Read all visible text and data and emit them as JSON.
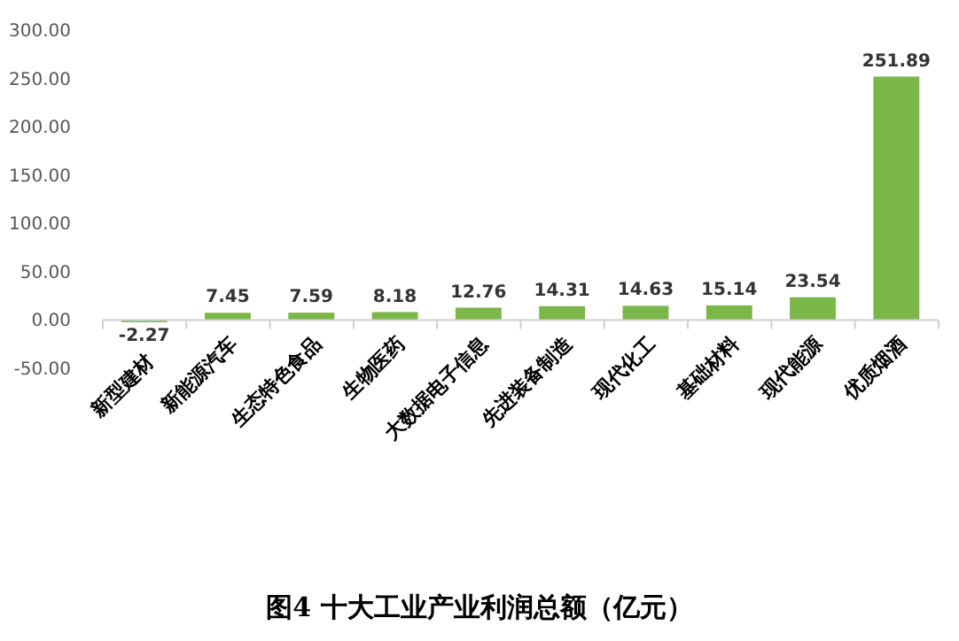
{
  "chart_data": {
    "type": "bar",
    "title": "图4  十大工业产业利润总额（亿元）",
    "categories": [
      "新型建材",
      "新能源汽车",
      "生态特色食品",
      "生物医药",
      "大数据电子信息",
      "先进装备制造",
      "现代化工",
      "基础材料",
      "现代能源",
      "优质烟酒"
    ],
    "values": [
      -2.27,
      7.45,
      7.59,
      8.18,
      12.76,
      14.31,
      14.63,
      15.14,
      23.54,
      251.89
    ],
    "color": "#7ab648",
    "ylim": [
      -50,
      300
    ],
    "yticks": [
      {
        "value": -50,
        "label": "-50.00"
      },
      {
        "value": 0,
        "label": "0.00"
      },
      {
        "value": 50,
        "label": "50.00"
      },
      {
        "value": 100,
        "label": "100.00"
      },
      {
        "value": 150,
        "label": "150.00"
      },
      {
        "value": 200,
        "label": "200.00"
      },
      {
        "value": 250,
        "label": "250.00"
      },
      {
        "value": 300,
        "label": "300.00"
      }
    ],
    "data_labels": true,
    "grid": false
  }
}
